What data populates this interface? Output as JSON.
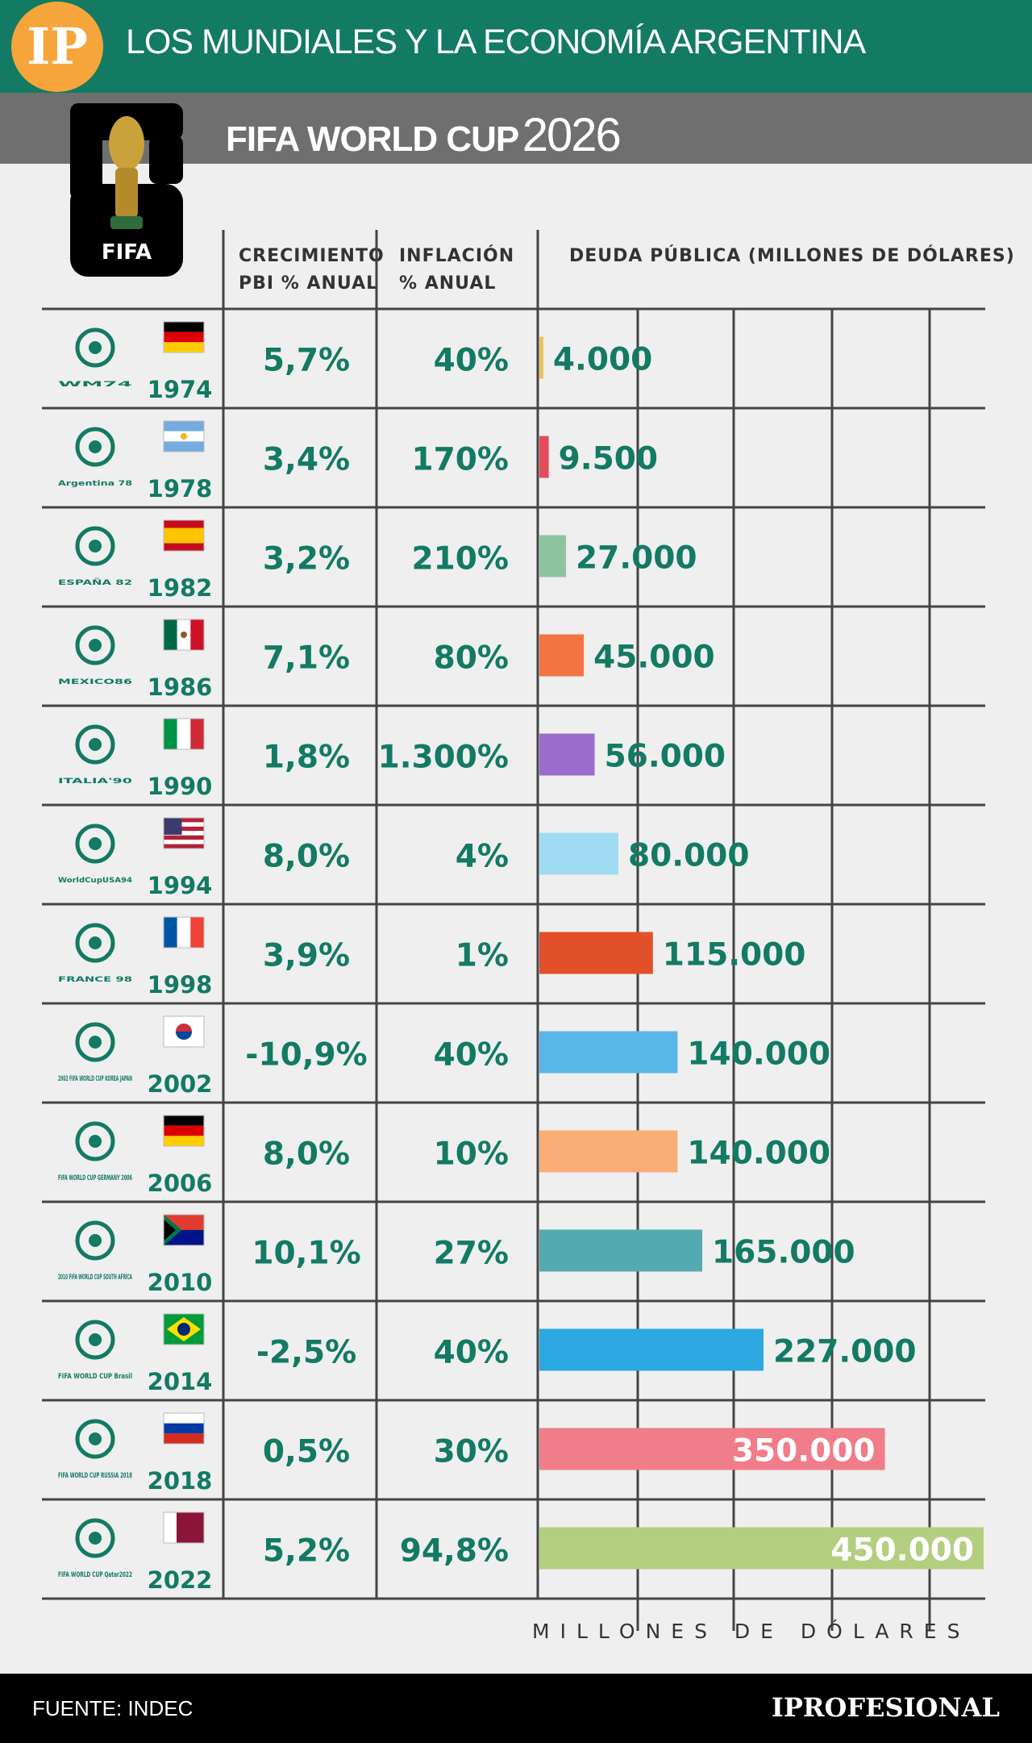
{
  "header": {
    "logo_text": "IP",
    "title": "LOS MUNDIALES Y LA ECONOMÍA ARGENTINA",
    "subtitle_bold": "FIFA WORLD CUP",
    "subtitle_year": "2026",
    "fifa_logo_text": "FIFA"
  },
  "columns": {
    "growth": [
      "CRECIMIENTO",
      "PBI % ANUAL"
    ],
    "inflation": [
      "INFLACIÓN",
      "% ANUAL"
    ],
    "debt": "DEUDA PÚBLICA (MILLONES DE DÓLARES)"
  },
  "colors": {
    "top_bar": "#137a64",
    "sub_bar": "#6f6f6f",
    "value_text": "#137a64",
    "grid": "#444444"
  },
  "chart_data": {
    "type": "table",
    "categories": [
      "1974",
      "1978",
      "1982",
      "1986",
      "1990",
      "1994",
      "1998",
      "2002",
      "2006",
      "2010",
      "2014",
      "2018",
      "2022"
    ],
    "countries": [
      "germany",
      "argentina",
      "spain",
      "mexico",
      "italy",
      "usa",
      "france",
      "south-korea",
      "germany",
      "south-africa",
      "brazil",
      "russia",
      "qatar"
    ],
    "logo_texts": [
      "WM74",
      "Argentina 78",
      "ESPAÑA 82",
      "MEXICO86",
      "ITALIA'90",
      "WorldCupUSA94",
      "FRANCE 98",
      "2002 FIFA WORLD CUP KOREA JAPAN",
      "FIFA WORLD CUP GERMANY 2006",
      "2010 FIFA WORLD CUP SOUTH AFRICA",
      "FIFA WORLD CUP Brasil",
      "FIFA WORLD CUP RUSSIA 2018",
      "FIFA WORLD CUP Qatar2022"
    ],
    "growth_labels": [
      "5,7%",
      "3,4%",
      "3,2%",
      "7,1%",
      "1,8%",
      "8,0%",
      "3,9%",
      "-10,9%",
      "8,0%",
      "10,1%",
      "-2,5%",
      "0,5%",
      "5,2%"
    ],
    "inflation_labels": [
      "40%",
      "170%",
      "210%",
      "80%",
      "1.300%",
      "4%",
      "1%",
      "40%",
      "10%",
      "27%",
      "40%",
      "30%",
      "94,8%"
    ],
    "series": [
      {
        "name": "DEUDA PÚBLICA (MILLONES DE DÓLARES)",
        "values": [
          4000,
          9500,
          27000,
          45000,
          56000,
          80000,
          115000,
          140000,
          140000,
          165000,
          227000,
          350000,
          450000
        ],
        "labels": [
          "4.000",
          "9.500",
          "27.000",
          "45.000",
          "56.000",
          "80.000",
          "115.000",
          "140.000",
          "140.000",
          "165.000",
          "227.000",
          "350.000",
          "450.000"
        ]
      }
    ],
    "bar_colors": [
      "#e8c25a",
      "#e34d5b",
      "#8ec3a2",
      "#f37440",
      "#9b6ccc",
      "#9fdcf4",
      "#e2502a",
      "#5ab6e8",
      "#f8ae74",
      "#55aab0",
      "#2ba8e1",
      "#f07d89",
      "#b4ce80"
    ],
    "xlim": [
      0,
      450000
    ],
    "xlabel": "MILLONES DE DÓLARES",
    "grid": true
  },
  "footer": {
    "source": "FUENTE: INDEC",
    "brand": "IPROFESIONAL"
  }
}
